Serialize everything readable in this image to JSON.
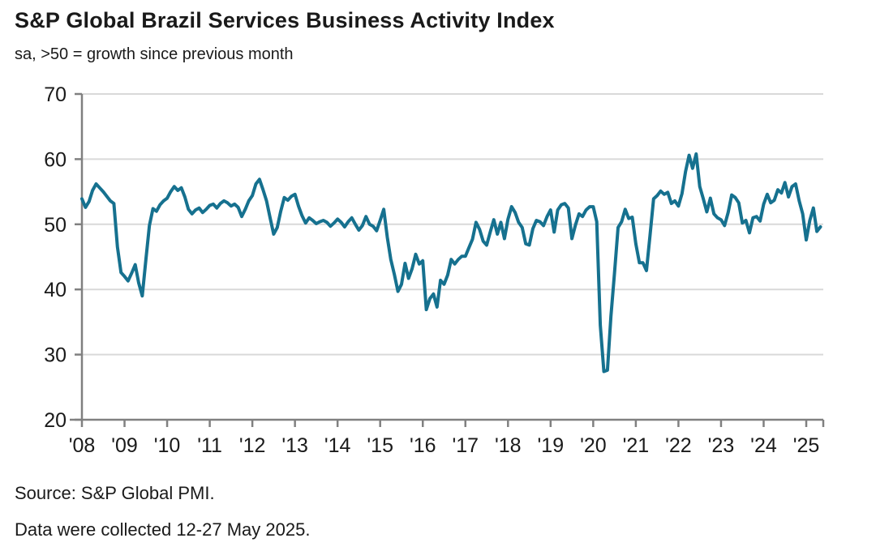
{
  "header": {
    "title": "S&P Global Brazil Services Business Activity Index",
    "subtitle": "sa, >50 = growth since previous month"
  },
  "footer": {
    "source": "Source: S&P Global PMI.",
    "note": "Data were collected 12-27 May 2025."
  },
  "colors": {
    "line": "#16718f",
    "axis": "#808080",
    "grid": "#d9d9d9",
    "text": "#1a1a1a"
  },
  "chart_data": {
    "type": "line",
    "title": "S&P Global Brazil Services Business Activity Index",
    "subtitle": "sa, >50 = growth since previous month",
    "frequency": "monthly",
    "x_start": "2008-01",
    "x_end": "2025-05",
    "x_tick_labels": [
      "'08",
      "'09",
      "'10",
      "'11",
      "'12",
      "'13",
      "'14",
      "'15",
      "'16",
      "'17",
      "'18",
      "'19",
      "'20",
      "'21",
      "'22",
      "'23",
      "'24",
      "'25"
    ],
    "y_ticks": [
      20,
      30,
      40,
      50,
      60,
      70
    ],
    "ylim": [
      20,
      70
    ],
    "grid": "horizontal-only",
    "legend": "none",
    "series": [
      {
        "name": "Brazil Services Business Activity Index (sa)",
        "values": [
          53.9,
          52.6,
          53.5,
          55.2,
          56.2,
          55.6,
          55.0,
          54.3,
          53.6,
          53.2,
          46.5,
          42.6,
          42.0,
          41.3,
          42.5,
          43.8,
          41.0,
          39.0,
          44.5,
          49.8,
          52.4,
          52.0,
          53.0,
          53.6,
          54.0,
          55.0,
          55.8,
          55.2,
          55.6,
          54.2,
          52.3,
          51.6,
          52.2,
          52.5,
          51.8,
          52.3,
          52.9,
          53.1,
          52.5,
          53.2,
          53.6,
          53.3,
          52.8,
          53.1,
          52.6,
          51.2,
          52.3,
          53.6,
          54.4,
          56.2,
          56.9,
          55.3,
          53.6,
          51.0,
          48.5,
          49.5,
          52.0,
          54.1,
          53.7,
          54.3,
          54.6,
          52.8,
          51.3,
          50.2,
          51.0,
          50.6,
          50.1,
          50.4,
          50.6,
          50.3,
          49.7,
          50.2,
          50.8,
          50.3,
          49.6,
          50.4,
          51.0,
          50.0,
          49.1,
          49.8,
          51.2,
          50.0,
          49.7,
          49.0,
          50.6,
          52.3,
          48.0,
          44.6,
          42.3,
          39.7,
          40.8,
          44.0,
          41.7,
          43.2,
          45.4,
          43.9,
          44.4,
          36.9,
          38.6,
          39.3,
          37.3,
          41.4,
          40.8,
          42.2,
          44.6,
          43.9,
          44.6,
          45.1,
          45.1,
          46.4,
          47.7,
          50.3,
          49.2,
          47.4,
          46.8,
          48.8,
          50.7,
          48.5,
          50.3,
          47.8,
          50.8,
          52.7,
          51.8,
          50.3,
          49.5,
          47.0,
          46.8,
          49.3,
          50.6,
          50.4,
          49.8,
          51.2,
          52.2,
          48.8,
          52.2,
          53.0,
          53.2,
          52.5,
          47.8,
          49.9,
          51.6,
          51.2,
          52.2,
          52.7,
          52.7,
          50.4,
          34.5,
          27.4,
          27.6,
          35.9,
          42.5,
          49.5,
          50.4,
          52.3,
          50.9,
          51.1,
          47.0,
          44.1,
          44.1,
          42.9,
          48.3,
          53.9,
          54.4,
          55.1,
          54.6,
          54.9,
          53.2,
          53.6,
          52.8,
          54.7,
          58.1,
          60.6,
          58.6,
          60.8,
          55.8,
          53.9,
          51.9,
          54.0,
          51.6,
          51.0,
          50.7,
          49.8,
          51.8,
          54.5,
          54.1,
          53.3,
          50.2,
          50.6,
          48.7,
          51.0,
          51.2,
          50.5,
          53.1,
          54.6,
          53.3,
          53.7,
          55.3,
          54.8,
          56.4,
          54.2,
          55.8,
          56.2,
          53.6,
          51.6,
          47.6,
          50.6,
          52.5,
          48.9,
          49.6
        ]
      }
    ]
  }
}
